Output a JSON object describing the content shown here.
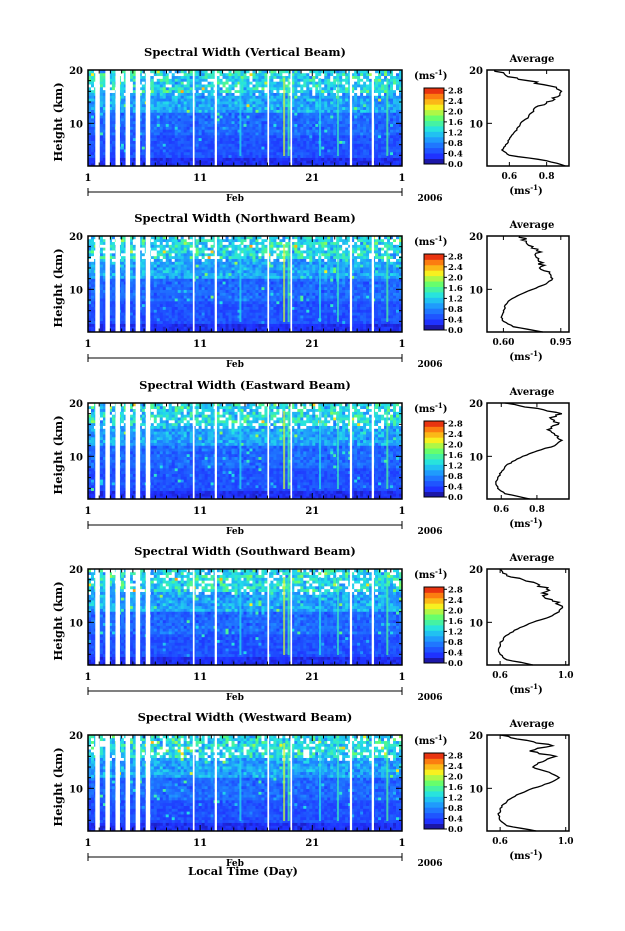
{
  "chart_data": [
    {
      "type": "heatmap",
      "title": "Spectral Width (Vertical Beam)",
      "ylabel": "Height (km)",
      "x_ticks": [
        "1",
        "11",
        "21",
        "1"
      ],
      "month_label": "Feb",
      "year_label": "2006",
      "y_ticks": [
        "10",
        "20"
      ],
      "ylim": [
        2,
        20
      ],
      "colorbar_unit": "(ms",
      "colorbar_exponent": "-1",
      "colorbar_close": ")",
      "colorbar_ticks": [
        "0.0",
        "0.4",
        "0.8",
        "1.2",
        "1.6",
        "2.0",
        "2.4",
        "2.8"
      ],
      "colorbar_range": [
        0.0,
        2.8
      ],
      "average": {
        "title": "Average",
        "xlabel": "(ms",
        "xlabel_exponent": "-1",
        "xlabel_close": ")",
        "x_ticks": [
          "0.6",
          "0.8"
        ],
        "xlim": [
          0.48,
          0.92
        ],
        "y_ticks": [
          "10",
          "20"
        ],
        "profile_height_km": [
          2,
          3,
          4,
          5,
          6,
          7,
          8,
          9,
          10,
          11,
          12,
          13,
          14,
          15,
          16,
          17,
          18,
          19,
          20
        ],
        "profile_width": [
          0.9,
          0.8,
          0.6,
          0.56,
          0.58,
          0.6,
          0.62,
          0.64,
          0.66,
          0.7,
          0.72,
          0.74,
          0.8,
          0.86,
          0.88,
          0.82,
          0.7,
          0.58,
          0.52
        ]
      }
    },
    {
      "type": "heatmap",
      "title": "Spectral Width (Northward Beam)",
      "ylabel": "Height (km)",
      "x_ticks": [
        "1",
        "11",
        "21",
        "1"
      ],
      "month_label": "Feb",
      "year_label": "2006",
      "y_ticks": [
        "10",
        "20"
      ],
      "ylim": [
        2,
        20
      ],
      "colorbar_unit": "(ms",
      "colorbar_exponent": "-1",
      "colorbar_close": ")",
      "colorbar_ticks": [
        "0.0",
        "0.4",
        "0.8",
        "1.2",
        "1.6",
        "2.0",
        "2.4",
        "2.8"
      ],
      "colorbar_range": [
        0.0,
        2.8
      ],
      "average": {
        "title": "Average",
        "xlabel": "(ms",
        "xlabel_exponent": "-1",
        "xlabel_close": ")",
        "x_ticks": [
          "0.60",
          "0.95"
        ],
        "xlim": [
          0.5,
          1.0
        ],
        "y_ticks": [
          "10",
          "20"
        ],
        "profile_height_km": [
          2,
          3,
          4,
          5,
          6,
          7,
          8,
          9,
          10,
          11,
          12,
          13,
          14,
          15,
          16,
          17,
          18,
          19,
          20
        ],
        "profile_width": [
          0.84,
          0.66,
          0.6,
          0.59,
          0.6,
          0.61,
          0.64,
          0.7,
          0.78,
          0.86,
          0.9,
          0.88,
          0.82,
          0.84,
          0.8,
          0.83,
          0.78,
          0.74,
          0.7
        ]
      }
    },
    {
      "type": "heatmap",
      "title": "Spectral Width (Eastward Beam)",
      "ylabel": "Height (km)",
      "x_ticks": [
        "1",
        "11",
        "21",
        "1"
      ],
      "month_label": "Feb",
      "year_label": "2006",
      "y_ticks": [
        "10",
        "20"
      ],
      "ylim": [
        2,
        20
      ],
      "colorbar_unit": "(ms",
      "colorbar_exponent": "-1",
      "colorbar_close": ")",
      "colorbar_ticks": [
        "0.0",
        "0.4",
        "0.8",
        "1.2",
        "1.6",
        "2.0",
        "2.4",
        "2.8"
      ],
      "colorbar_range": [
        0.0,
        2.8
      ],
      "average": {
        "title": "Average",
        "xlabel": "(ms",
        "xlabel_exponent": "-1",
        "xlabel_close": ")",
        "x_ticks": [
          "0.6",
          "0.8"
        ],
        "xlim": [
          0.52,
          0.98
        ],
        "y_ticks": [
          "10",
          "20"
        ],
        "profile_height_km": [
          2,
          3,
          4,
          5,
          6,
          7,
          8,
          9,
          10,
          11,
          12,
          13,
          14,
          15,
          16,
          17,
          18,
          19,
          20
        ],
        "profile_width": [
          0.76,
          0.62,
          0.58,
          0.57,
          0.58,
          0.6,
          0.62,
          0.66,
          0.72,
          0.8,
          0.9,
          0.94,
          0.9,
          0.86,
          0.92,
          0.88,
          0.94,
          0.8,
          0.62
        ]
      }
    },
    {
      "type": "heatmap",
      "title": "Spectral Width (Southward Beam)",
      "ylabel": "Height (km)",
      "x_ticks": [
        "1",
        "11",
        "21",
        "1"
      ],
      "month_label": "Feb",
      "year_label": "2006",
      "y_ticks": [
        "10",
        "20"
      ],
      "ylim": [
        2,
        20
      ],
      "colorbar_unit": "(ms",
      "colorbar_exponent": "-1",
      "colorbar_close": ")",
      "colorbar_ticks": [
        "0.0",
        "0.4",
        "0.8",
        "1.2",
        "1.6",
        "2.0",
        "2.4",
        "2.8"
      ],
      "colorbar_range": [
        0.0,
        2.8
      ],
      "average": {
        "title": "Average",
        "xlabel": "(ms",
        "xlabel_exponent": "-1",
        "xlabel_close": ")",
        "x_ticks": [
          "0.6",
          "1.0"
        ],
        "xlim": [
          0.52,
          1.02
        ],
        "y_ticks": [
          "10",
          "20"
        ],
        "profile_height_km": [
          2,
          3,
          4,
          5,
          6,
          7,
          8,
          9,
          10,
          11,
          12,
          13,
          14,
          15,
          16,
          17,
          18,
          19,
          20
        ],
        "profile_width": [
          0.8,
          0.64,
          0.6,
          0.59,
          0.6,
          0.62,
          0.66,
          0.72,
          0.8,
          0.9,
          0.96,
          0.98,
          0.92,
          0.86,
          0.9,
          0.84,
          0.74,
          0.64,
          0.6
        ]
      }
    },
    {
      "type": "heatmap",
      "title": "Spectral Width (Westward Beam)",
      "ylabel": "Height (km)",
      "xlabel": "Local Time (Day)",
      "x_ticks": [
        "1",
        "11",
        "21",
        "1"
      ],
      "month_label": "Feb",
      "year_label": "2006",
      "y_ticks": [
        "10",
        "20"
      ],
      "ylim": [
        2,
        20
      ],
      "colorbar_unit": "(ms",
      "colorbar_exponent": "-1",
      "colorbar_close": ")",
      "colorbar_ticks": [
        "0.0",
        "0.4",
        "0.8",
        "1.2",
        "1.6",
        "2.0",
        "2.4",
        "2.8"
      ],
      "colorbar_range": [
        0.0,
        2.8
      ],
      "average": {
        "title": "Average",
        "xlabel": "(ms",
        "xlabel_exponent": "-1",
        "xlabel_close": ")",
        "x_ticks": [
          "0.6",
          "1.0"
        ],
        "xlim": [
          0.52,
          1.02
        ],
        "y_ticks": [
          "10",
          "20"
        ],
        "profile_height_km": [
          2,
          3,
          4,
          5,
          6,
          7,
          8,
          9,
          10,
          11,
          12,
          13,
          14,
          15,
          16,
          17,
          18,
          19,
          20
        ],
        "profile_width": [
          0.82,
          0.64,
          0.6,
          0.59,
          0.6,
          0.62,
          0.66,
          0.72,
          0.8,
          0.9,
          0.96,
          0.9,
          0.8,
          0.86,
          0.94,
          0.78,
          0.92,
          0.76,
          0.6
        ]
      }
    }
  ]
}
